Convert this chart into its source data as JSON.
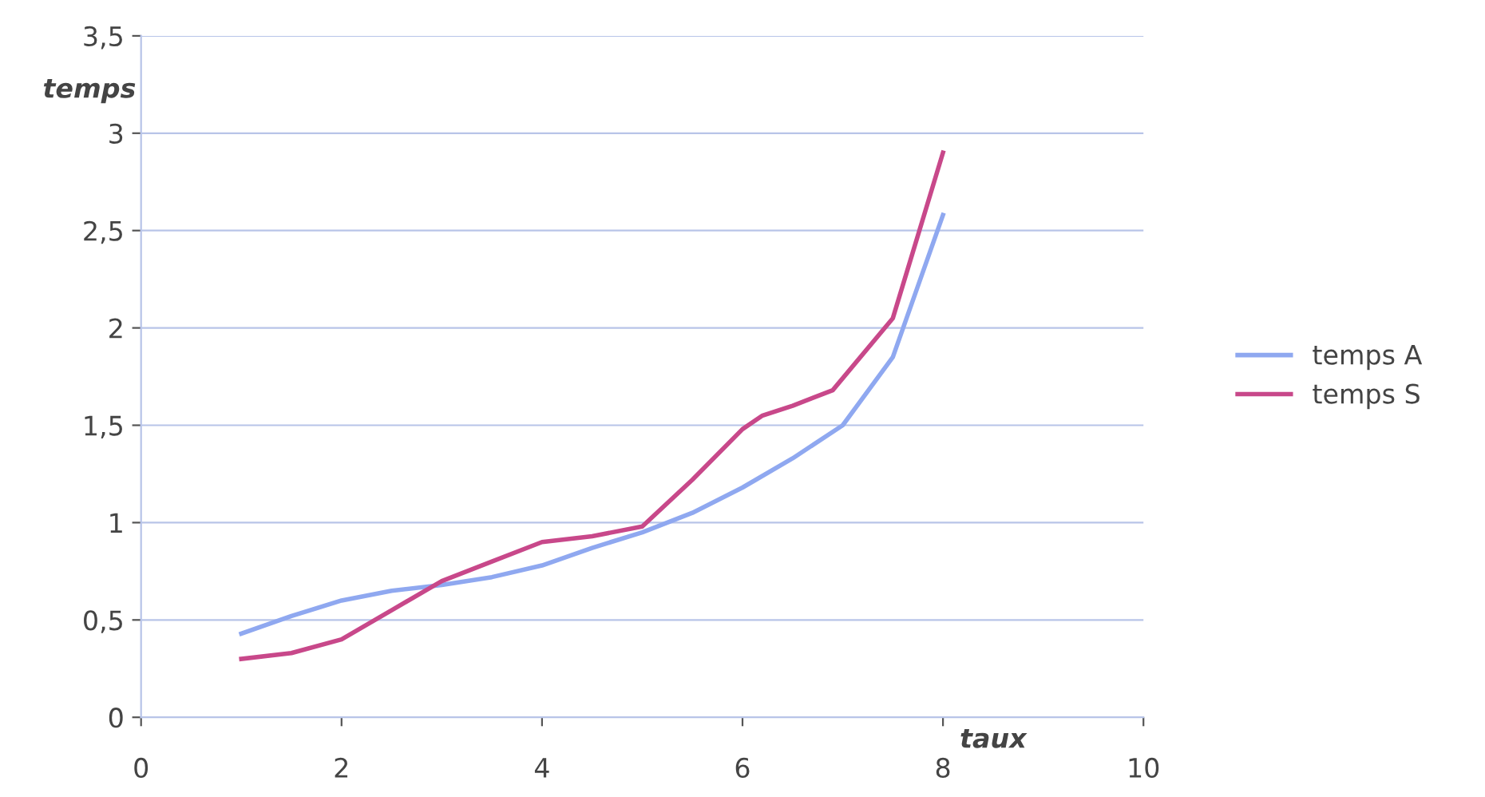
{
  "chart_data": {
    "type": "line",
    "xlabel": "taux",
    "ylabel": "temps",
    "xlim": [
      0,
      10
    ],
    "xticks": [
      0,
      2,
      4,
      6,
      8,
      10
    ],
    "ylim": [
      0,
      3.5
    ],
    "yticks": [
      0,
      {
        "value": 0.5,
        "label": "0,5"
      },
      1,
      {
        "value": 1.5,
        "label": "1,5"
      },
      2,
      {
        "value": 2.5,
        "label": "2,5"
      },
      3,
      {
        "value": 3.5,
        "label": "3,5"
      }
    ],
    "grid": "y",
    "legend": "right",
    "marker": "none",
    "line_style": "solid",
    "series": [
      {
        "name": "temps A",
        "color": "#8fa8f0",
        "x": [
          1,
          1.5,
          2,
          2.5,
          3,
          3.5,
          4,
          4.5,
          5,
          5.5,
          6,
          6.5,
          7,
          7.5,
          8
        ],
        "values": [
          0.43,
          0.52,
          0.6,
          0.65,
          0.68,
          0.72,
          0.78,
          0.87,
          0.95,
          1.05,
          1.18,
          1.33,
          1.5,
          1.85,
          2.58
        ]
      },
      {
        "name": "temps S",
        "color": "#c8488a",
        "x": [
          1,
          1.5,
          2,
          2.5,
          3,
          3.5,
          4,
          4.5,
          5,
          5.5,
          6,
          6.2,
          6.5,
          6.9,
          7.5,
          8
        ],
        "values": [
          0.3,
          0.33,
          0.4,
          0.55,
          0.7,
          0.8,
          0.9,
          0.93,
          0.98,
          1.22,
          1.48,
          1.55,
          1.6,
          1.68,
          2.05,
          2.9
        ]
      }
    ]
  }
}
